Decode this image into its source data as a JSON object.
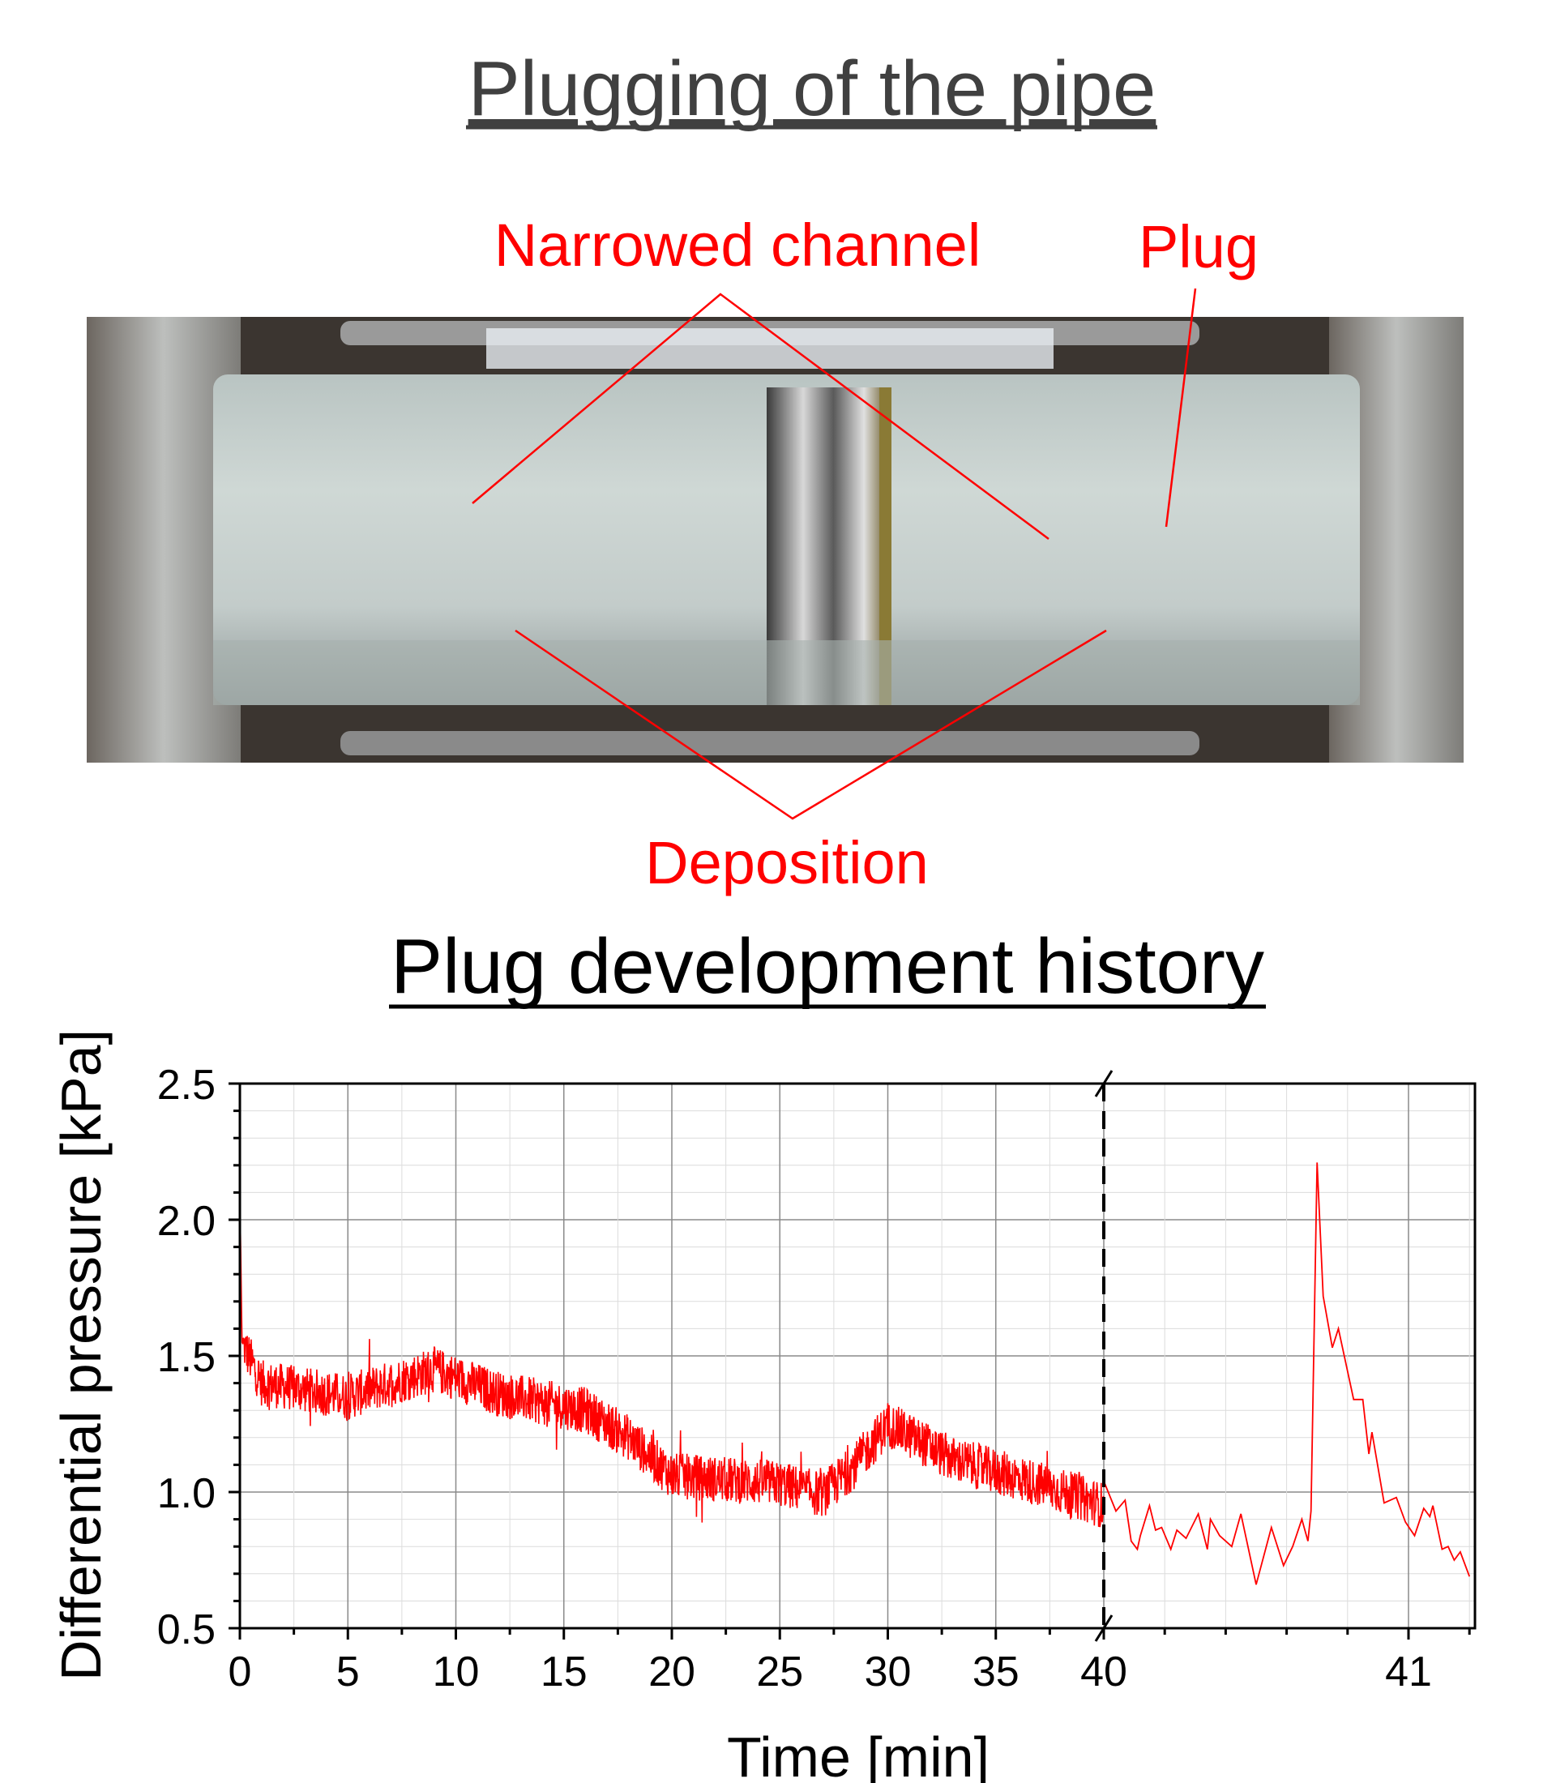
{
  "photo_section": {
    "title": "Plugging of the pipe",
    "labels": {
      "narrowed": "Narrowed channel",
      "plug": "Plug",
      "deposition": "Deposition"
    },
    "label_color": "#ff0000",
    "title_color": "#404040"
  },
  "chart_data": {
    "type": "line",
    "title": "Plug development history",
    "xlabel": "Time [min]",
    "ylabel": "Differential pressure [kPa]",
    "ylim": [
      0.5,
      2.5
    ],
    "yticks": [
      "0.5",
      "1.0",
      "1.5",
      "2.0",
      "2.5"
    ],
    "axis_break": {
      "at": 40,
      "style": "dashed vertical line"
    },
    "segments": [
      {
        "xlim": [
          0,
          40
        ],
        "xticks": [
          "0",
          "5",
          "10",
          "15",
          "20",
          "25",
          "30",
          "35",
          "40"
        ]
      },
      {
        "xlim": [
          40,
          41.22
        ],
        "xticks": [
          "41"
        ]
      }
    ],
    "grid": true,
    "series_color": "#ff0000",
    "series": [
      {
        "description_trend": "noisy signal, approx ±0.08 kPa around trend",
        "trend": [
          [
            0,
            2.1
          ],
          [
            0.1,
            1.55
          ],
          [
            1,
            1.4
          ],
          [
            5,
            1.35
          ],
          [
            9,
            1.45
          ],
          [
            12,
            1.36
          ],
          [
            16,
            1.3
          ],
          [
            18,
            1.2
          ],
          [
            20,
            1.06
          ],
          [
            25,
            1.03
          ],
          [
            27,
            0.99
          ],
          [
            28.5,
            1.1
          ],
          [
            30,
            1.25
          ],
          [
            33,
            1.12
          ],
          [
            37,
            1.03
          ],
          [
            40,
            0.95
          ]
        ],
        "points_after_break": [
          [
            40.0,
            1.04
          ],
          [
            40.04,
            0.93
          ],
          [
            40.07,
            0.97
          ],
          [
            40.09,
            0.82
          ],
          [
            40.11,
            0.79
          ],
          [
            40.12,
            0.84
          ],
          [
            40.15,
            0.95
          ],
          [
            40.17,
            0.86
          ],
          [
            40.19,
            0.87
          ],
          [
            40.22,
            0.79
          ],
          [
            40.24,
            0.86
          ],
          [
            40.27,
            0.83
          ],
          [
            40.31,
            0.92
          ],
          [
            40.34,
            0.79
          ],
          [
            40.35,
            0.9
          ],
          [
            40.38,
            0.84
          ],
          [
            40.42,
            0.8
          ],
          [
            40.45,
            0.92
          ],
          [
            40.5,
            0.66
          ],
          [
            40.55,
            0.87
          ],
          [
            40.59,
            0.73
          ],
          [
            40.62,
            0.8
          ],
          [
            40.65,
            0.9
          ],
          [
            40.67,
            0.82
          ],
          [
            40.68,
            0.93
          ],
          [
            40.7,
            2.21
          ],
          [
            40.72,
            1.72
          ],
          [
            40.75,
            1.53
          ],
          [
            40.77,
            1.6
          ],
          [
            40.82,
            1.34
          ],
          [
            40.85,
            1.34
          ],
          [
            40.87,
            1.14
          ],
          [
            40.88,
            1.22
          ],
          [
            40.92,
            0.96
          ],
          [
            40.96,
            0.98
          ],
          [
            40.99,
            0.89
          ],
          [
            41.02,
            0.84
          ],
          [
            41.05,
            0.94
          ],
          [
            41.07,
            0.91
          ],
          [
            41.08,
            0.95
          ],
          [
            41.11,
            0.79
          ],
          [
            41.13,
            0.8
          ],
          [
            41.15,
            0.75
          ],
          [
            41.17,
            0.78
          ],
          [
            41.2,
            0.69
          ]
        ]
      }
    ]
  }
}
